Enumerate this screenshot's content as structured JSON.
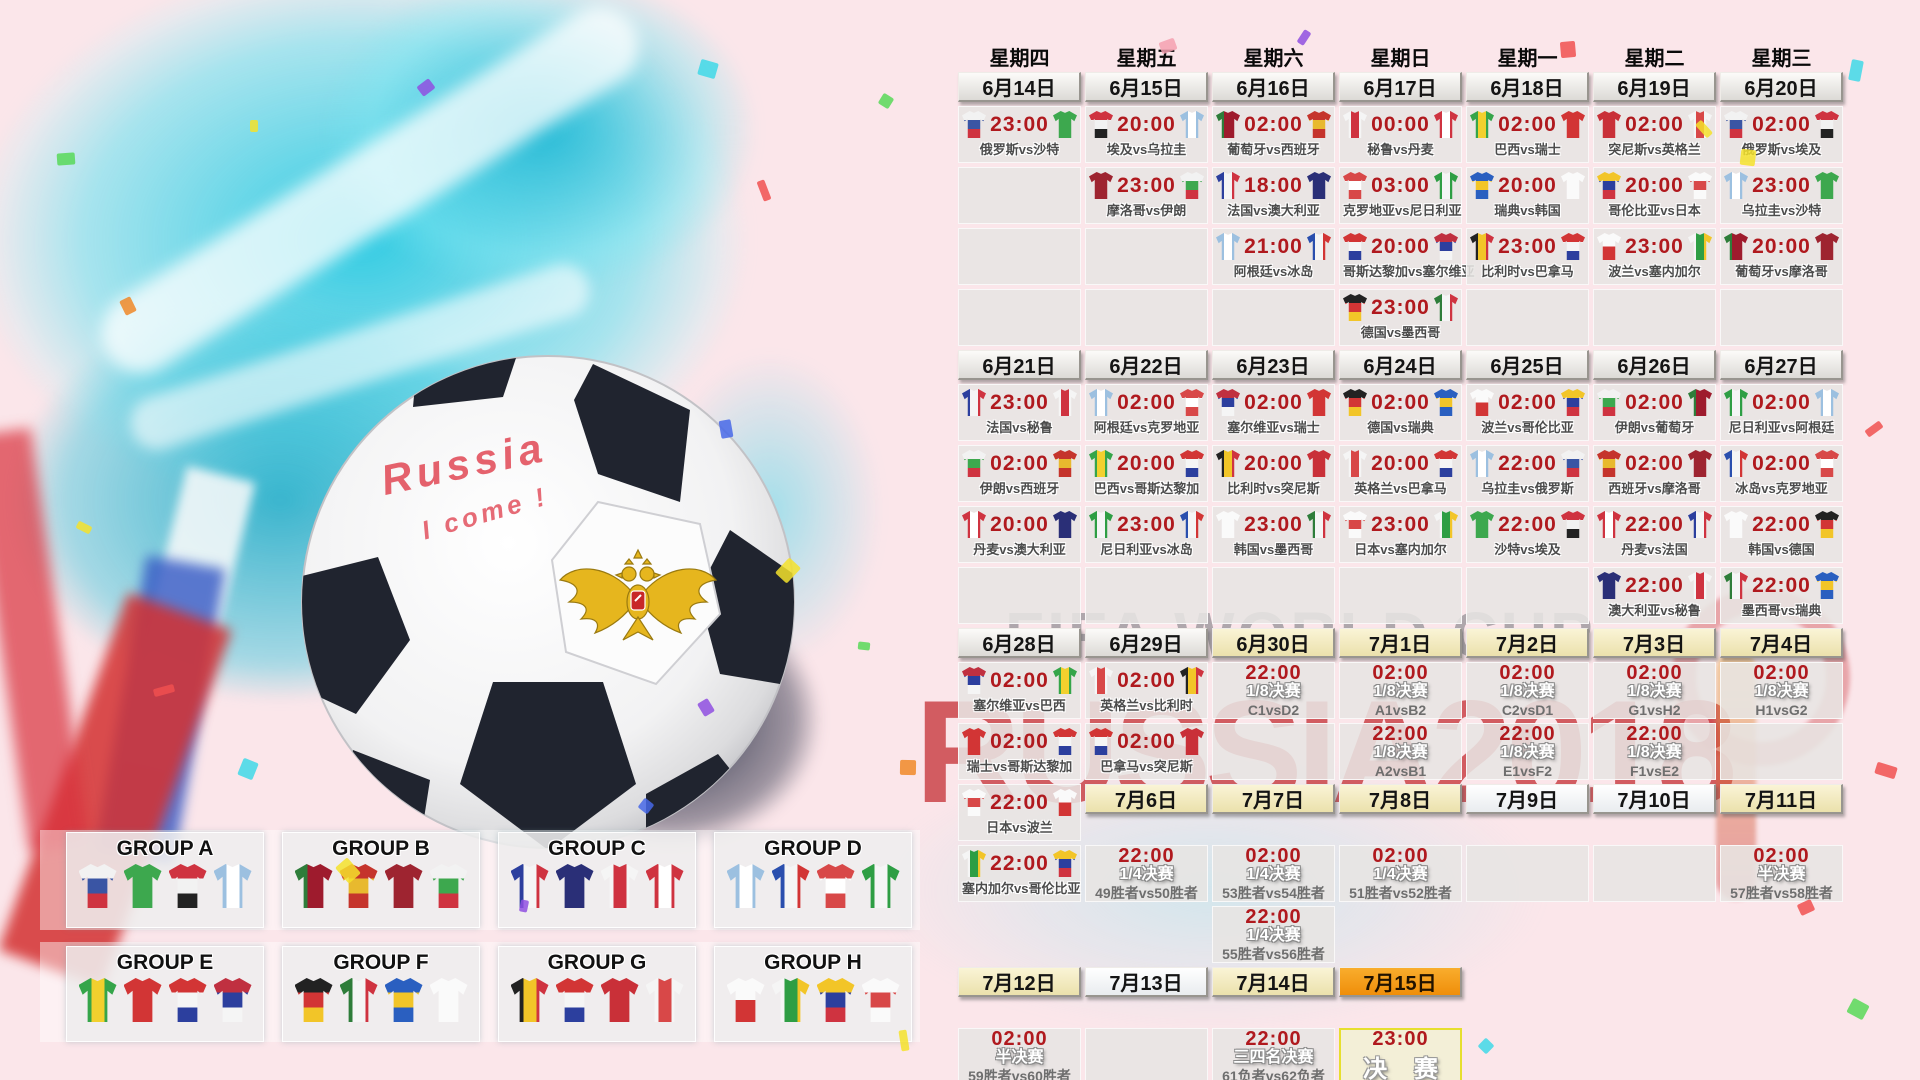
{
  "art": {
    "watermark_line1": "FIFA WORLD CUP",
    "watermark_line2": "RUSSIA2018",
    "ball_text1": "Russia",
    "ball_text2": "I come !"
  },
  "colors": {
    "background_pink": "#fbe6ea",
    "splash_cyan": "#28cae2",
    "time_red": "#b0191e",
    "chip_gray": "#e4e2de",
    "chip_cream": "#f0e7b8",
    "chip_orange": "#f49a1a",
    "watermark_red": "#c2272d",
    "watermark_gray": "#7d7d82",
    "ball_patch_dark": "#20242f",
    "eagle_gold": "#e6b61e"
  },
  "teams": {
    "russia": {
      "name": "俄罗斯",
      "dir": "h",
      "colors": [
        "#f2f2f2",
        "#3a55a4",
        "#cf3340"
      ]
    },
    "saudi": {
      "name": "沙特",
      "dir": "h",
      "colors": [
        "#3da84e"
      ]
    },
    "egypt": {
      "name": "埃及",
      "dir": "h",
      "colors": [
        "#cf3340",
        "#f2f2f2",
        "#222222"
      ]
    },
    "uruguay": {
      "name": "乌拉圭",
      "dir": "v",
      "colors": [
        "#9cc0e0",
        "#ffffff",
        "#9cc0e0"
      ]
    },
    "portugal": {
      "name": "葡萄牙",
      "dir": "v",
      "colors": [
        "#2e7d3a",
        "#9e1b2d",
        "#9e1b2d"
      ]
    },
    "spain": {
      "name": "西班牙",
      "dir": "h",
      "colors": [
        "#c5342c",
        "#e8b92e",
        "#c5342c"
      ]
    },
    "peru": {
      "name": "秘鲁",
      "dir": "v",
      "colors": [
        "#f5f5f5",
        "#cf3340",
        "#f5f5f5"
      ]
    },
    "denmark": {
      "name": "丹麦",
      "dir": "v",
      "colors": [
        "#cf3340",
        "#ffffff",
        "#cf3340"
      ]
    },
    "brazil": {
      "name": "巴西",
      "dir": "v",
      "colors": [
        "#35a54a",
        "#f2d02e",
        "#35a54a"
      ]
    },
    "switzerland": {
      "name": "瑞士",
      "dir": "h",
      "colors": [
        "#d23535"
      ]
    },
    "tunisia": {
      "name": "突尼斯",
      "dir": "h",
      "colors": [
        "#c93038"
      ]
    },
    "england": {
      "name": "英格兰",
      "dir": "v",
      "colors": [
        "#f5f5f5",
        "#d84848",
        "#f5f5f5"
      ]
    },
    "morocco": {
      "name": "摩洛哥",
      "dir": "h",
      "colors": [
        "#9e2430"
      ]
    },
    "iran": {
      "name": "伊朗",
      "dir": "h",
      "colors": [
        "#f2f2f2",
        "#3da84e",
        "#cf3340"
      ]
    },
    "france": {
      "name": "法国",
      "dir": "v",
      "colors": [
        "#2c3f9e",
        "#f5f5f5",
        "#cf3340"
      ]
    },
    "australia": {
      "name": "澳大利亚",
      "dir": "h",
      "colors": [
        "#2a2f77"
      ]
    },
    "croatia": {
      "name": "克罗地亚",
      "dir": "h",
      "colors": [
        "#d84848",
        "#ffffff",
        "#d84848"
      ]
    },
    "nigeria": {
      "name": "尼日利亚",
      "dir": "v",
      "colors": [
        "#2e9e44",
        "#f5f5f5",
        "#2e9e44"
      ]
    },
    "sweden": {
      "name": "瑞典",
      "dir": "h",
      "colors": [
        "#2a5fc0",
        "#f2c528",
        "#2a5fc0"
      ]
    },
    "korea": {
      "name": "韩国",
      "dir": "h",
      "colors": [
        "#fafafa"
      ]
    },
    "colombia": {
      "name": "哥伦比亚",
      "dir": "h",
      "colors": [
        "#f2c528",
        "#2c3f9e",
        "#cf3340"
      ]
    },
    "japan": {
      "name": "日本",
      "dir": "h",
      "colors": [
        "#fafafa",
        "#d84848",
        "#fafafa"
      ]
    },
    "belgium": {
      "name": "比利时",
      "dir": "v",
      "colors": [
        "#222222",
        "#f2c528",
        "#cf3340"
      ]
    },
    "panama": {
      "name": "巴拿马",
      "dir": "h",
      "colors": [
        "#d23535",
        "#f5f5f5",
        "#2c3f9e"
      ]
    },
    "poland": {
      "name": "波兰",
      "dir": "h",
      "colors": [
        "#fafafa",
        "#d23535"
      ]
    },
    "senegal": {
      "name": "塞内加尔",
      "dir": "v",
      "colors": [
        "#f5f5f5",
        "#2e9e44",
        "#f2c528"
      ]
    },
    "costarica": {
      "name": "哥斯达黎加",
      "dir": "h",
      "colors": [
        "#d23535",
        "#f5f5f5",
        "#2c3f9e"
      ]
    },
    "serbia": {
      "name": "塞尔维亚",
      "dir": "h",
      "colors": [
        "#c03040",
        "#2c3f9e",
        "#f5f5f5"
      ]
    },
    "germany": {
      "name": "德国",
      "dir": "h",
      "colors": [
        "#222222",
        "#d23535",
        "#f2c528"
      ]
    },
    "mexico": {
      "name": "墨西哥",
      "dir": "v",
      "colors": [
        "#2e7d3a",
        "#f5f5f5",
        "#cf3340"
      ]
    },
    "argentina": {
      "name": "阿根廷",
      "dir": "v",
      "colors": [
        "#9cc0e0",
        "#ffffff",
        "#9cc0e0"
      ]
    },
    "iceland": {
      "name": "冰岛",
      "dir": "v",
      "colors": [
        "#2a4fae",
        "#f5f5f5",
        "#d23535"
      ]
    }
  },
  "groups": [
    {
      "name": "GROUP A",
      "teams": [
        "russia",
        "saudi",
        "egypt",
        "uruguay"
      ]
    },
    {
      "name": "GROUP B",
      "teams": [
        "portugal",
        "spain",
        "morocco",
        "iran"
      ]
    },
    {
      "name": "GROUP C",
      "teams": [
        "france",
        "australia",
        "peru",
        "denmark"
      ]
    },
    {
      "name": "GROUP D",
      "teams": [
        "argentina",
        "iceland",
        "croatia",
        "nigeria"
      ]
    },
    {
      "name": "GROUP E",
      "teams": [
        "brazil",
        "switzerland",
        "costarica",
        "serbia"
      ]
    },
    {
      "name": "GROUP F",
      "teams": [
        "germany",
        "mexico",
        "sweden",
        "korea"
      ]
    },
    {
      "name": "GROUP G",
      "teams": [
        "belgium",
        "panama",
        "tunisia",
        "england"
      ]
    },
    {
      "name": "GROUP H",
      "teams": [
        "poland",
        "senegal",
        "colombia",
        "japan"
      ]
    }
  ],
  "calendar": {
    "weekdays": [
      "星期四",
      "星期五",
      "星期六",
      "星期日",
      "星期一",
      "星期二",
      "星期三"
    ],
    "rows": [
      [
        {
          "t": "c",
          "label": "6月14日",
          "style": "gray"
        },
        {
          "t": "c",
          "label": "6月15日",
          "style": "gray"
        },
        {
          "t": "c",
          "label": "6月16日",
          "style": "gray"
        },
        {
          "t": "c",
          "label": "6月17日",
          "style": "gray"
        },
        {
          "t": "c",
          "label": "6月18日",
          "style": "gray"
        },
        {
          "t": "c",
          "label": "6月19日",
          "style": "gray"
        },
        {
          "t": "c",
          "label": "6月20日",
          "style": "gray"
        }
      ],
      [
        {
          "t": "m",
          "time": "23:00",
          "h": "russia",
          "a": "saudi",
          "label": "俄罗斯vs沙特"
        },
        {
          "t": "m",
          "time": "20:00",
          "h": "egypt",
          "a": "uruguay",
          "label": "埃及vs乌拉圭"
        },
        {
          "t": "m",
          "time": "02:00",
          "h": "portugal",
          "a": "spain",
          "label": "葡萄牙vs西班牙"
        },
        {
          "t": "m",
          "time": "00:00",
          "h": "peru",
          "a": "denmark",
          "label": "秘鲁vs丹麦"
        },
        {
          "t": "m",
          "time": "02:00",
          "h": "brazil",
          "a": "switzerland",
          "label": "巴西vs瑞士"
        },
        {
          "t": "m",
          "time": "02:00",
          "h": "tunisia",
          "a": "england",
          "label": "突尼斯vs英格兰"
        },
        {
          "t": "m",
          "time": "02:00",
          "h": "russia",
          "a": "egypt",
          "label": "俄罗斯vs埃及"
        }
      ],
      [
        {
          "t": "e"
        },
        {
          "t": "m",
          "time": "23:00",
          "h": "morocco",
          "a": "iran",
          "label": "摩洛哥vs伊朗"
        },
        {
          "t": "m",
          "time": "18:00",
          "h": "france",
          "a": "australia",
          "label": "法国vs澳大利亚"
        },
        {
          "t": "m",
          "time": "03:00",
          "h": "croatia",
          "a": "nigeria",
          "label": "克罗地亚vs尼日利亚"
        },
        {
          "t": "m",
          "time": "20:00",
          "h": "sweden",
          "a": "korea",
          "label": "瑞典vs韩国"
        },
        {
          "t": "m",
          "time": "20:00",
          "h": "colombia",
          "a": "japan",
          "label": "哥伦比亚vs日本"
        },
        {
          "t": "m",
          "time": "23:00",
          "h": "uruguay",
          "a": "saudi",
          "label": "乌拉圭vs沙特"
        }
      ],
      [
        {
          "t": "e"
        },
        {
          "t": "e"
        },
        {
          "t": "m",
          "time": "21:00",
          "h": "argentina",
          "a": "iceland",
          "label": "阿根廷vs冰岛"
        },
        {
          "t": "m",
          "time": "20:00",
          "h": "costarica",
          "a": "serbia",
          "label": "哥斯达黎加vs塞尔维亚"
        },
        {
          "t": "m",
          "time": "23:00",
          "h": "belgium",
          "a": "panama",
          "label": "比利时vs巴拿马"
        },
        {
          "t": "m",
          "time": "23:00",
          "h": "poland",
          "a": "senegal",
          "label": "波兰vs塞内加尔"
        },
        {
          "t": "m",
          "time": "20:00",
          "h": "portugal",
          "a": "morocco",
          "label": "葡萄牙vs摩洛哥"
        }
      ],
      [
        {
          "t": "e"
        },
        {
          "t": "e"
        },
        {
          "t": "e"
        },
        {
          "t": "m",
          "time": "23:00",
          "h": "germany",
          "a": "mexico",
          "label": "德国vs墨西哥"
        },
        {
          "t": "e"
        },
        {
          "t": "e"
        },
        {
          "t": "e"
        }
      ],
      [
        {
          "t": "c",
          "label": "6月21日",
          "style": "gray"
        },
        {
          "t": "c",
          "label": "6月22日",
          "style": "gray"
        },
        {
          "t": "c",
          "label": "6月23日",
          "style": "gray"
        },
        {
          "t": "c",
          "label": "6月24日",
          "style": "gray"
        },
        {
          "t": "c",
          "label": "6月25日",
          "style": "gray"
        },
        {
          "t": "c",
          "label": "6月26日",
          "style": "gray"
        },
        {
          "t": "c",
          "label": "6月27日",
          "style": "gray"
        }
      ],
      [
        {
          "t": "m",
          "time": "23:00",
          "h": "france",
          "a": "peru",
          "label": "法国vs秘鲁"
        },
        {
          "t": "m",
          "time": "02:00",
          "h": "argentina",
          "a": "croatia",
          "label": "阿根廷vs克罗地亚"
        },
        {
          "t": "m",
          "time": "02:00",
          "h": "serbia",
          "a": "switzerland",
          "label": "塞尔维亚vs瑞士"
        },
        {
          "t": "m",
          "time": "02:00",
          "h": "germany",
          "a": "sweden",
          "label": "德国vs瑞典"
        },
        {
          "t": "m",
          "time": "02:00",
          "h": "poland",
          "a": "colombia",
          "label": "波兰vs哥伦比亚"
        },
        {
          "t": "m",
          "time": "02:00",
          "h": "iran",
          "a": "portugal",
          "label": "伊朗vs葡萄牙"
        },
        {
          "t": "m",
          "time": "02:00",
          "h": "nigeria",
          "a": "argentina",
          "label": "尼日利亚vs阿根廷"
        }
      ],
      [
        {
          "t": "m",
          "time": "02:00",
          "h": "iran",
          "a": "spain",
          "label": "伊朗vs西班牙"
        },
        {
          "t": "m",
          "time": "20:00",
          "h": "brazil",
          "a": "costarica",
          "label": "巴西vs哥斯达黎加"
        },
        {
          "t": "m",
          "time": "20:00",
          "h": "belgium",
          "a": "tunisia",
          "label": "比利时vs突尼斯"
        },
        {
          "t": "m",
          "time": "20:00",
          "h": "england",
          "a": "panama",
          "label": "英格兰vs巴拿马"
        },
        {
          "t": "m",
          "time": "22:00",
          "h": "uruguay",
          "a": "russia",
          "label": "乌拉圭vs俄罗斯"
        },
        {
          "t": "m",
          "time": "02:00",
          "h": "spain",
          "a": "morocco",
          "label": "西班牙vs摩洛哥"
        },
        {
          "t": "m",
          "time": "02:00",
          "h": "iceland",
          "a": "croatia",
          "label": "冰岛vs克罗地亚"
        }
      ],
      [
        {
          "t": "m",
          "time": "20:00",
          "h": "denmark",
          "a": "australia",
          "label": "丹麦vs澳大利亚"
        },
        {
          "t": "m",
          "time": "23:00",
          "h": "nigeria",
          "a": "iceland",
          "label": "尼日利亚vs冰岛"
        },
        {
          "t": "m",
          "time": "23:00",
          "h": "korea",
          "a": "mexico",
          "label": "韩国vs墨西哥"
        },
        {
          "t": "m",
          "time": "23:00",
          "h": "japan",
          "a": "senegal",
          "label": "日本vs塞内加尔"
        },
        {
          "t": "m",
          "time": "22:00",
          "h": "saudi",
          "a": "egypt",
          "label": "沙特vs埃及"
        },
        {
          "t": "m",
          "time": "22:00",
          "h": "denmark",
          "a": "france",
          "label": "丹麦vs法国"
        },
        {
          "t": "m",
          "time": "22:00",
          "h": "korea",
          "a": "germany",
          "label": "韩国vs德国"
        }
      ],
      [
        {
          "t": "e"
        },
        {
          "t": "e"
        },
        {
          "t": "e"
        },
        {
          "t": "e"
        },
        {
          "t": "e"
        },
        {
          "t": "m",
          "time": "22:00",
          "h": "australia",
          "a": "peru",
          "label": "澳大利亚vs秘鲁"
        },
        {
          "t": "m",
          "time": "22:00",
          "h": "mexico",
          "a": "sweden",
          "label": "墨西哥vs瑞典"
        }
      ],
      [
        {
          "t": "c",
          "label": "6月28日",
          "style": "gray"
        },
        {
          "t": "c",
          "label": "6月29日",
          "style": "gray"
        },
        {
          "t": "c",
          "label": "6月30日",
          "style": "cream"
        },
        {
          "t": "c",
          "label": "7月1日",
          "style": "cream"
        },
        {
          "t": "c",
          "label": "7月2日",
          "style": "cream"
        },
        {
          "t": "c",
          "label": "7月3日",
          "style": "cream"
        },
        {
          "t": "c",
          "label": "7月4日",
          "style": "cream"
        }
      ],
      [
        {
          "t": "m",
          "time": "02:00",
          "h": "serbia",
          "a": "brazil",
          "label": "塞尔维亚vs巴西"
        },
        {
          "t": "m",
          "time": "02:00",
          "h": "england",
          "a": "belgium",
          "label": "英格兰vs比利时"
        },
        {
          "t": "k",
          "time": "22:00",
          "stage": "1/8决赛",
          "who": "C1vsD2"
        },
        {
          "t": "k",
          "time": "02:00",
          "stage": "1/8决赛",
          "who": "A1vsB2"
        },
        {
          "t": "k",
          "time": "02:00",
          "stage": "1/8决赛",
          "who": "C2vsD1"
        },
        {
          "t": "k",
          "time": "02:00",
          "stage": "1/8决赛",
          "who": "G1vsH2"
        },
        {
          "t": "k",
          "time": "02:00",
          "stage": "1/8决赛",
          "who": "H1vsG2"
        }
      ],
      [
        {
          "t": "m",
          "time": "02:00",
          "h": "switzerland",
          "a": "costarica",
          "label": "瑞士vs哥斯达黎加"
        },
        {
          "t": "m",
          "time": "02:00",
          "h": "panama",
          "a": "tunisia",
          "label": "巴拿马vs突尼斯"
        },
        {
          "t": "e"
        },
        {
          "t": "k",
          "time": "22:00",
          "stage": "1/8决赛",
          "who": "A2vsB1"
        },
        {
          "t": "k",
          "time": "22:00",
          "stage": "1/8决赛",
          "who": "E1vsF2"
        },
        {
          "t": "k",
          "time": "22:00",
          "stage": "1/8决赛",
          "who": "F1vsE2"
        },
        {
          "t": "e"
        }
      ],
      [
        {
          "t": "m",
          "time": "22:00",
          "h": "japan",
          "a": "poland",
          "label": "日本vs波兰"
        },
        {
          "t": "c",
          "label": "7月6日",
          "style": "cream"
        },
        {
          "t": "c",
          "label": "7月7日",
          "style": "cream"
        },
        {
          "t": "c",
          "label": "7月8日",
          "style": "cream"
        },
        {
          "t": "c",
          "label": "7月9日",
          "style": "white"
        },
        {
          "t": "c",
          "label": "7月10日",
          "style": "white"
        },
        {
          "t": "c",
          "label": "7月11日",
          "style": "cream"
        }
      ],
      [
        {
          "t": "m",
          "time": "22:00",
          "h": "senegal",
          "a": "colombia",
          "label": "塞内加尔vs哥伦比亚"
        },
        {
          "t": "k",
          "time": "22:00",
          "stage": "1/4决赛",
          "who": "49胜者vs50胜者"
        },
        {
          "t": "k",
          "time": "02:00",
          "stage": "1/4决赛",
          "who": "53胜者vs54胜者"
        },
        {
          "t": "k",
          "time": "02:00",
          "stage": "1/4决赛",
          "who": "51胜者vs52胜者"
        },
        {
          "t": "e"
        },
        {
          "t": "e"
        },
        {
          "t": "k",
          "time": "02:00",
          "stage": "半决赛",
          "who": "57胜者vs58胜者"
        }
      ],
      [
        {
          "t": "n"
        },
        {
          "t": "n"
        },
        {
          "t": "k",
          "time": "22:00",
          "stage": "1/4决赛",
          "who": "55胜者vs56胜者"
        },
        {
          "t": "n"
        },
        {
          "t": "n"
        },
        {
          "t": "n"
        },
        {
          "t": "n"
        }
      ],
      [
        {
          "t": "c",
          "label": "7月12日",
          "style": "cream"
        },
        {
          "t": "c",
          "label": "7月13日",
          "style": "white"
        },
        {
          "t": "c",
          "label": "7月14日",
          "style": "cream"
        },
        {
          "t": "c",
          "label": "7月15日",
          "style": "orange"
        },
        {
          "t": "n"
        },
        {
          "t": "n"
        },
        {
          "t": "n"
        }
      ],
      [
        {
          "t": "k",
          "time": "02:00",
          "stage": "半决赛",
          "who": "59胜者vs60胜者"
        },
        {
          "t": "e"
        },
        {
          "t": "k",
          "time": "22:00",
          "stage": "三四名决赛",
          "who": "61负者vs62负者"
        },
        {
          "t": "f",
          "time": "23:00",
          "label": "决 赛"
        },
        {
          "t": "n"
        },
        {
          "t": "n"
        },
        {
          "t": "n"
        }
      ]
    ]
  }
}
